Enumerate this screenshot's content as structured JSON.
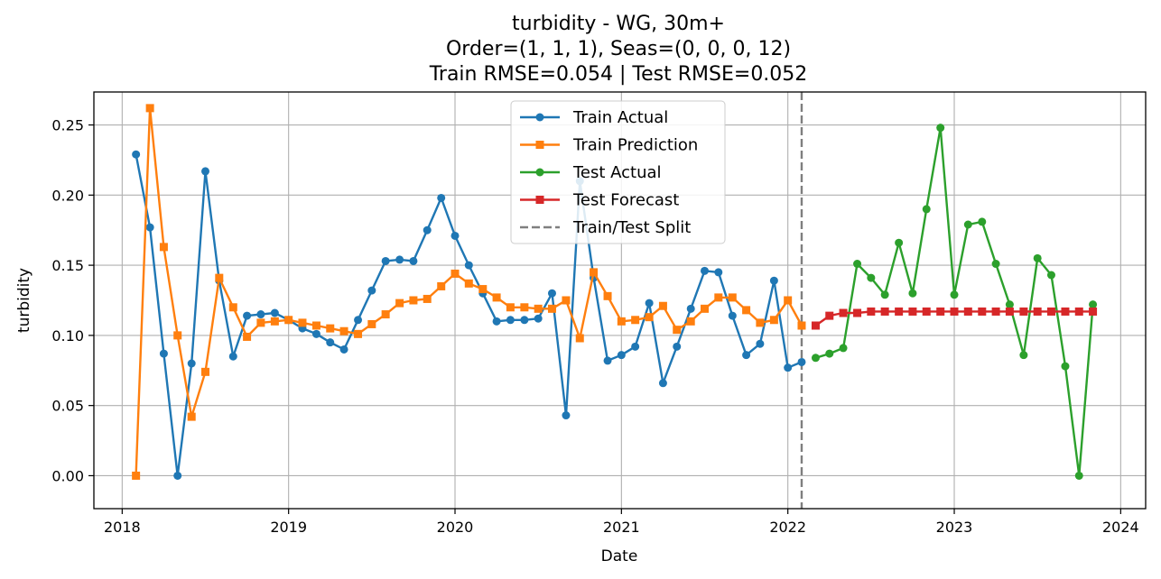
{
  "chart_data": {
    "type": "line",
    "title_lines": [
      "turbidity - WG, 30m+",
      "Order=(1, 1, 1), Seas=(0, 0, 0, 12)",
      "Train RMSE=0.054 | Test RMSE=0.052"
    ],
    "xlabel": "Date",
    "ylabel": "turbidity",
    "xlim": [
      2017.83,
      2024.15
    ],
    "ylim": [
      -0.0235,
      0.2735
    ],
    "x_ticks": [
      2018,
      2019,
      2020,
      2021,
      2022,
      2023,
      2024
    ],
    "x_tick_labels": [
      "2018",
      "2019",
      "2020",
      "2021",
      "2022",
      "2023",
      "2024"
    ],
    "y_ticks": [
      0.0,
      0.05,
      0.1,
      0.15,
      0.2,
      0.25
    ],
    "y_tick_labels": [
      "0.00",
      "0.05",
      "0.10",
      "0.15",
      "0.20",
      "0.25"
    ],
    "grid": true,
    "legend_position": "upper-center",
    "split_x": 2022.083,
    "series": [
      {
        "name": "Train Actual",
        "color": "#1f77b4",
        "marker": "circle",
        "x": [
          2018.083,
          2018.167,
          2018.25,
          2018.333,
          2018.417,
          2018.5,
          2018.583,
          2018.667,
          2018.75,
          2018.833,
          2018.917,
          2019.0,
          2019.083,
          2019.167,
          2019.25,
          2019.333,
          2019.417,
          2019.5,
          2019.583,
          2019.667,
          2019.75,
          2019.833,
          2019.917,
          2020.0,
          2020.083,
          2020.167,
          2020.25,
          2020.333,
          2020.417,
          2020.5,
          2020.583,
          2020.667,
          2020.75,
          2020.833,
          2020.917,
          2021.0,
          2021.083,
          2021.167,
          2021.25,
          2021.333,
          2021.417,
          2021.5,
          2021.583,
          2021.667,
          2021.75,
          2021.833,
          2021.917,
          2022.0,
          2022.083
        ],
        "y": [
          0.229,
          0.177,
          0.087,
          0.0,
          0.08,
          0.217,
          0.139,
          0.085,
          0.114,
          0.115,
          0.116,
          0.111,
          0.105,
          0.101,
          0.095,
          0.09,
          0.111,
          0.132,
          0.153,
          0.154,
          0.153,
          0.175,
          0.198,
          0.171,
          0.15,
          0.13,
          0.11,
          0.111,
          0.111,
          0.112,
          0.13,
          0.043,
          0.21,
          0.141,
          0.082,
          0.086,
          0.092,
          0.123,
          0.066,
          0.092,
          0.119,
          0.146,
          0.145,
          0.114,
          0.086,
          0.094,
          0.139,
          0.077,
          0.081
        ]
      },
      {
        "name": "Train Prediction",
        "color": "#ff7f0e",
        "marker": "square",
        "x": [
          2018.083,
          2018.167,
          2018.25,
          2018.333,
          2018.417,
          2018.5,
          2018.583,
          2018.667,
          2018.75,
          2018.833,
          2018.917,
          2019.0,
          2019.083,
          2019.167,
          2019.25,
          2019.333,
          2019.417,
          2019.5,
          2019.583,
          2019.667,
          2019.75,
          2019.833,
          2019.917,
          2020.0,
          2020.083,
          2020.167,
          2020.25,
          2020.333,
          2020.417,
          2020.5,
          2020.583,
          2020.667,
          2020.75,
          2020.833,
          2020.917,
          2021.0,
          2021.083,
          2021.167,
          2021.25,
          2021.333,
          2021.417,
          2021.5,
          2021.583,
          2021.667,
          2021.75,
          2021.833,
          2021.917,
          2022.0,
          2022.083
        ],
        "y": [
          0.0,
          0.262,
          0.163,
          0.1,
          0.042,
          0.074,
          0.141,
          0.12,
          0.099,
          0.109,
          0.11,
          0.111,
          0.109,
          0.107,
          0.105,
          0.103,
          0.101,
          0.108,
          0.115,
          0.123,
          0.125,
          0.126,
          0.135,
          0.144,
          0.137,
          0.133,
          0.127,
          0.12,
          0.12,
          0.119,
          0.119,
          0.125,
          0.098,
          0.145,
          0.128,
          0.11,
          0.111,
          0.113,
          0.121,
          0.104,
          0.11,
          0.119,
          0.127,
          0.127,
          0.118,
          0.109,
          0.111,
          0.125,
          0.107
        ]
      },
      {
        "name": "Test Actual",
        "color": "#2ca02c",
        "marker": "circle",
        "x": [
          2022.167,
          2022.25,
          2022.333,
          2022.417,
          2022.5,
          2022.583,
          2022.667,
          2022.75,
          2022.833,
          2022.917,
          2023.0,
          2023.083,
          2023.167,
          2023.25,
          2023.333,
          2023.417,
          2023.5,
          2023.583,
          2023.667,
          2023.75,
          2023.833
        ],
        "y": [
          0.084,
          0.087,
          0.091,
          0.151,
          0.141,
          0.129,
          0.166,
          0.13,
          0.19,
          0.248,
          0.129,
          0.179,
          0.181,
          0.151,
          0.122,
          0.086,
          0.155,
          0.143,
          0.078,
          0.0,
          0.122
        ]
      },
      {
        "name": "Test Forecast",
        "color": "#d62728",
        "marker": "square",
        "x": [
          2022.167,
          2022.25,
          2022.333,
          2022.417,
          2022.5,
          2022.583,
          2022.667,
          2022.75,
          2022.833,
          2022.917,
          2023.0,
          2023.083,
          2023.167,
          2023.25,
          2023.333,
          2023.417,
          2023.5,
          2023.583,
          2023.667,
          2023.75,
          2023.833
        ],
        "y": [
          0.107,
          0.114,
          0.116,
          0.116,
          0.117,
          0.117,
          0.117,
          0.117,
          0.117,
          0.117,
          0.117,
          0.117,
          0.117,
          0.117,
          0.117,
          0.117,
          0.117,
          0.117,
          0.117,
          0.117,
          0.117
        ]
      },
      {
        "name": "Train/Test Split",
        "color": "#7f7f7f",
        "style": "dashed-vertical"
      }
    ]
  }
}
